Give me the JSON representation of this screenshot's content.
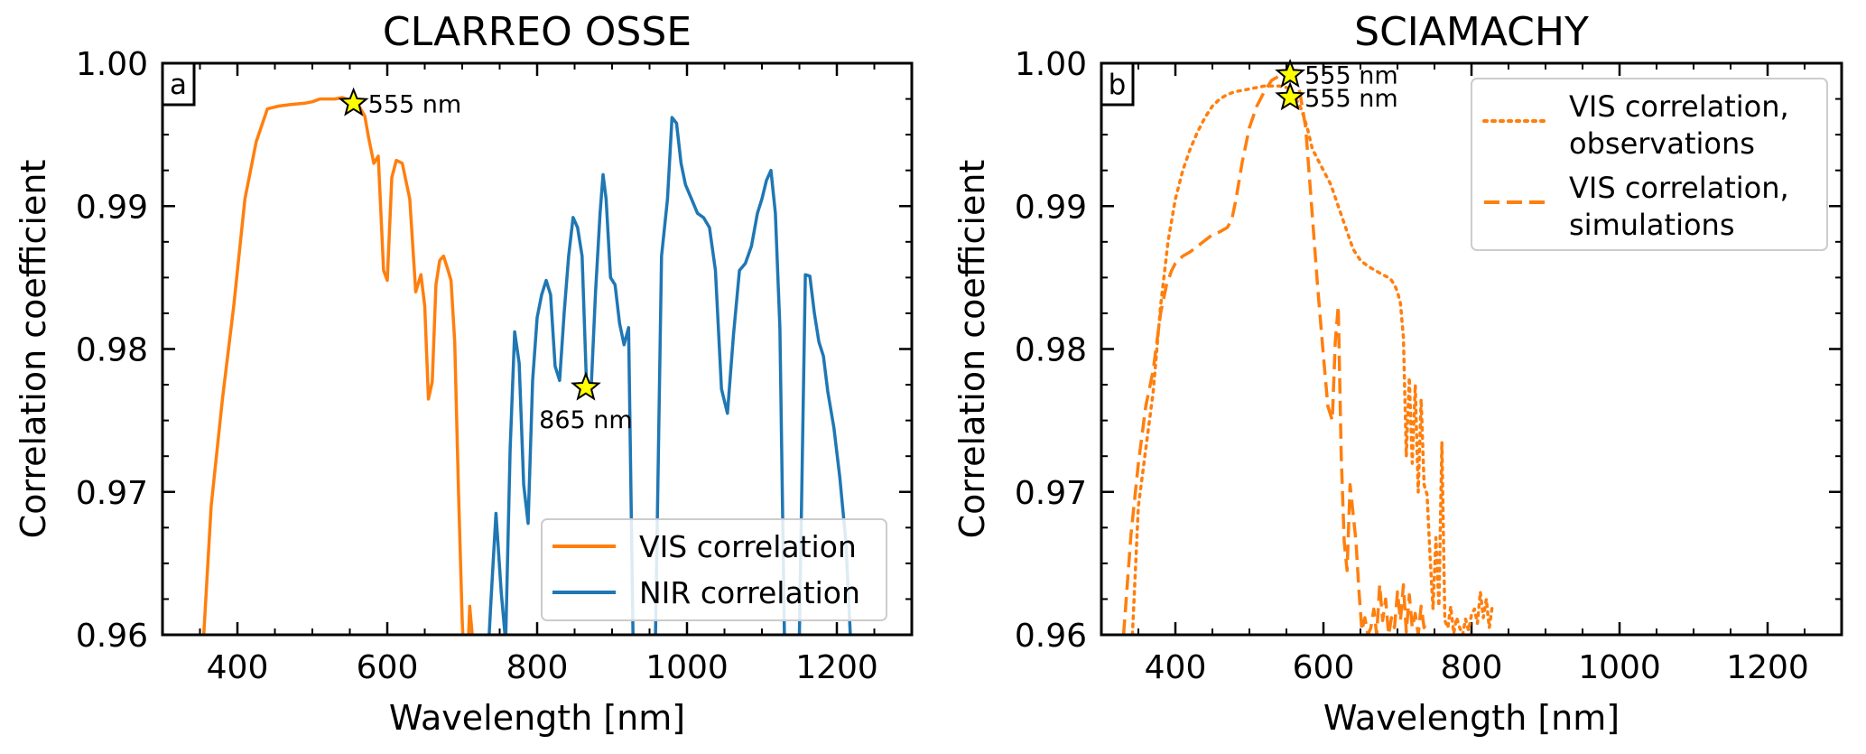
{
  "chart_data": [
    {
      "panel": "a",
      "type": "line",
      "title": "CLARREO OSSE",
      "xlabel": "Wavelength [nm]",
      "ylabel": "Correlation coefficient",
      "xlim": [
        300,
        1300
      ],
      "ylim": [
        0.96,
        1.0
      ],
      "xticks": [
        400,
        600,
        800,
        1000,
        1200
      ],
      "yticks": [
        0.96,
        0.97,
        0.98,
        0.99,
        1.0
      ],
      "xtick_labels": [
        "400",
        "600",
        "800",
        "1000",
        "1200"
      ],
      "ytick_labels": [
        "0.96",
        "0.97",
        "0.98",
        "0.99",
        "1.00"
      ],
      "legend": {
        "loc": "lower right",
        "entries": [
          "VIS correlation",
          "NIR correlation"
        ]
      },
      "series": [
        {
          "name": "VIS correlation",
          "color": "#ff7f0e",
          "style": "solid",
          "x": [
            355,
            365,
            380,
            395,
            410,
            425,
            440,
            455,
            470,
            490,
            500,
            510,
            520,
            530,
            540,
            550,
            560,
            570,
            575,
            582,
            588,
            595,
            600,
            606,
            612,
            620,
            630,
            638,
            645,
            650,
            655,
            660,
            665,
            670,
            675,
            680,
            685,
            690,
            695,
            700,
            705,
            710,
            715
          ],
          "y": [
            0.96,
            0.969,
            0.9765,
            0.983,
            0.9905,
            0.9945,
            0.9968,
            0.997,
            0.9971,
            0.9972,
            0.9973,
            0.9975,
            0.9975,
            0.9975,
            0.9976,
            0.9974,
            0.9972,
            0.9963,
            0.9948,
            0.993,
            0.9935,
            0.9855,
            0.9848,
            0.992,
            0.9932,
            0.993,
            0.9905,
            0.984,
            0.9852,
            0.983,
            0.9765,
            0.9777,
            0.9845,
            0.9862,
            0.9865,
            0.9857,
            0.9848,
            0.9805,
            0.97,
            0.961,
            0.955,
            0.962,
            0.959
          ]
        },
        {
          "name": "NIR correlation",
          "color": "#1f77b4",
          "style": "solid",
          "x": [
            725,
            732,
            738,
            745,
            752,
            758,
            764,
            770,
            776,
            782,
            788,
            794,
            800,
            806,
            812,
            818,
            824,
            830,
            836,
            842,
            848,
            854,
            860,
            866,
            872,
            878,
            884,
            888,
            892,
            898,
            904,
            910,
            916,
            922,
            928,
            935,
            942,
            950,
            958,
            966,
            974,
            980,
            986,
            992,
            998,
            1006,
            1014,
            1022,
            1030,
            1038,
            1046,
            1054,
            1062,
            1070,
            1078,
            1086,
            1094,
            1100,
            1106,
            1112,
            1118,
            1124,
            1130,
            1136,
            1142,
            1150,
            1158,
            1164,
            1170,
            1176,
            1182,
            1188,
            1196,
            1204,
            1212,
            1218
          ],
          "y": [
            0.96,
            0.956,
            0.962,
            0.9685,
            0.963,
            0.9595,
            0.973,
            0.9812,
            0.979,
            0.9705,
            0.9678,
            0.9778,
            0.9822,
            0.9838,
            0.9848,
            0.9838,
            0.9788,
            0.9778,
            0.9825,
            0.9865,
            0.9892,
            0.9885,
            0.9865,
            0.9773,
            0.9772,
            0.984,
            0.9895,
            0.9922,
            0.9905,
            0.985,
            0.9845,
            0.9818,
            0.9803,
            0.9815,
            0.96,
            0.955,
            0.955,
            0.955,
            0.96,
            0.9865,
            0.9905,
            0.9962,
            0.9958,
            0.993,
            0.9915,
            0.9905,
            0.9895,
            0.9892,
            0.9885,
            0.9855,
            0.9772,
            0.9755,
            0.981,
            0.9855,
            0.986,
            0.9872,
            0.9895,
            0.9905,
            0.9918,
            0.9925,
            0.9895,
            0.9815,
            0.96,
            0.955,
            0.955,
            0.96,
            0.9852,
            0.9851,
            0.9825,
            0.9805,
            0.9795,
            0.977,
            0.9745,
            0.971,
            0.9665,
            0.96
          ]
        }
      ],
      "markers": [
        {
          "x": 555,
          "y": 0.9972,
          "label": "555 nm"
        },
        {
          "x": 865,
          "y": 0.9773,
          "label": "865 nm"
        }
      ]
    },
    {
      "panel": "b",
      "type": "line",
      "title": "SCIAMACHY",
      "xlabel": "Wavelength [nm]",
      "ylabel": "Correlation coefficient",
      "xlim": [
        300,
        1300
      ],
      "ylim": [
        0.96,
        1.0
      ],
      "xticks": [
        400,
        600,
        800,
        1000,
        1200
      ],
      "yticks": [
        0.96,
        0.97,
        0.98,
        0.99,
        1.0
      ],
      "xtick_labels": [
        "400",
        "600",
        "800",
        "1000",
        "1200"
      ],
      "ytick_labels": [
        "0.96",
        "0.97",
        "0.98",
        "0.99",
        "1.00"
      ],
      "legend": {
        "loc": "upper right",
        "entries": [
          [
            "VIS correlation,",
            "observations"
          ],
          [
            "VIS correlation,",
            "simulations"
          ]
        ]
      },
      "series": [
        {
          "name": "VIS correlation, observations",
          "color": "#ff7f0e",
          "style": "dotted",
          "x": [
            342,
            350,
            360,
            370,
            380,
            390,
            400,
            410,
            420,
            430,
            440,
            450,
            460,
            470,
            480,
            490,
            500,
            510,
            520,
            530,
            540,
            550,
            555,
            560,
            570,
            578,
            585,
            590,
            595,
            600,
            610,
            620,
            630,
            640,
            650,
            660,
            670,
            680,
            688,
            692,
            696,
            700,
            704,
            708,
            712,
            716,
            720,
            724,
            728,
            732,
            736,
            740,
            744,
            748,
            752,
            756,
            760,
            764,
            768,
            772,
            776,
            780,
            784,
            788,
            792,
            796,
            800,
            804,
            808,
            812,
            816,
            820,
            824,
            828
          ],
          "y": [
            0.96,
            0.969,
            0.973,
            0.977,
            0.983,
            0.9875,
            0.9905,
            0.9925,
            0.994,
            0.9952,
            0.9962,
            0.997,
            0.9975,
            0.9978,
            0.998,
            0.9981,
            0.9982,
            0.9983,
            0.9984,
            0.9984,
            0.9984,
            0.9983,
            0.9982,
            0.9978,
            0.9968,
            0.9955,
            0.994,
            0.9935,
            0.993,
            0.9925,
            0.9915,
            0.99,
            0.9885,
            0.987,
            0.9862,
            0.9858,
            0.9855,
            0.9852,
            0.985,
            0.9848,
            0.9845,
            0.984,
            0.9832,
            0.9808,
            0.9725,
            0.978,
            0.972,
            0.9775,
            0.97,
            0.9765,
            0.9705,
            0.9698,
            0.9655,
            0.9618,
            0.9668,
            0.962,
            0.9735,
            0.961,
            0.9605,
            0.962,
            0.9601,
            0.9612,
            0.9605,
            0.96,
            0.9611,
            0.9603,
            0.9614,
            0.9618,
            0.9608,
            0.963,
            0.9612,
            0.9625,
            0.9605,
            0.962
          ]
        },
        {
          "name": "VIS correlation, simulations",
          "color": "#ff7f0e",
          "style": "dashed",
          "x": [
            330,
            340,
            350,
            360,
            370,
            380,
            388,
            395,
            400,
            410,
            420,
            430,
            440,
            450,
            460,
            470,
            476,
            482,
            490,
            500,
            510,
            520,
            530,
            540,
            550,
            555,
            560,
            568,
            576,
            584,
            592,
            600,
            606,
            612,
            616,
            620,
            624,
            628,
            632,
            636,
            640,
            644,
            648,
            652,
            656,
            660,
            664,
            668,
            672,
            676,
            680,
            684,
            688,
            692,
            696,
            700,
            704,
            708,
            712,
            716,
            720,
            724,
            728,
            732,
            736,
            740
          ],
          "y": [
            0.96,
            0.967,
            0.972,
            0.976,
            0.9785,
            0.9825,
            0.9845,
            0.9855,
            0.986,
            0.9865,
            0.9868,
            0.9872,
            0.9876,
            0.988,
            0.9882,
            0.9885,
            0.989,
            0.9905,
            0.993,
            0.9955,
            0.997,
            0.998,
            0.9988,
            0.9991,
            0.9992,
            0.9991,
            0.9989,
            0.998,
            0.9955,
            0.99,
            0.9845,
            0.9795,
            0.976,
            0.975,
            0.9805,
            0.983,
            0.9725,
            0.9665,
            0.9645,
            0.9705,
            0.9685,
            0.9665,
            0.963,
            0.9603,
            0.9612,
            0.96,
            0.9605,
            0.9618,
            0.96,
            0.9635,
            0.961,
            0.9625,
            0.96,
            0.9612,
            0.9605,
            0.963,
            0.961,
            0.9635,
            0.9602,
            0.9628,
            0.9605,
            0.9615,
            0.96,
            0.962,
            0.9605,
            0.961
          ]
        }
      ],
      "markers": [
        {
          "x": 555,
          "y": 0.9992,
          "label": "555 nm"
        },
        {
          "x": 555,
          "y": 0.9976,
          "label": "555 nm"
        }
      ]
    }
  ]
}
